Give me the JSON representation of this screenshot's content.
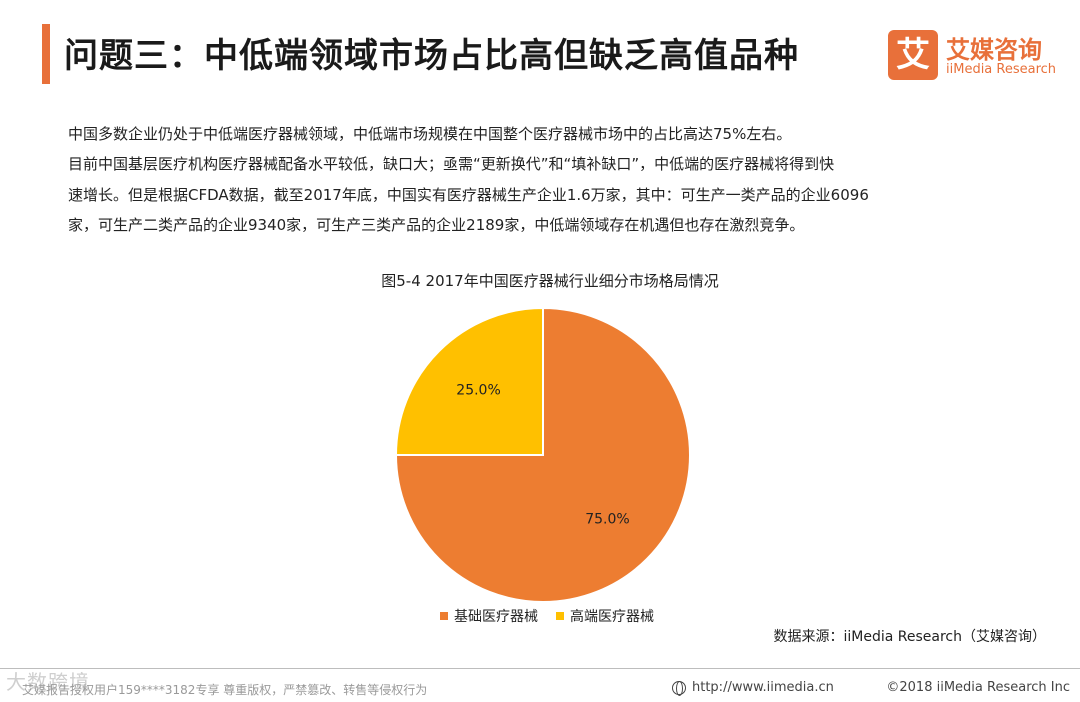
{
  "header": {
    "title": "问题三：中低端领域市场占比高但缺乏高值品种"
  },
  "logo": {
    "mark": "艾",
    "name_cn": "艾媒咨询",
    "name_en": "iiMedia Research"
  },
  "body": {
    "line1": "中国多数企业仍处于中低端医疗器械领域，中低端市场规模在中国整个医疗器械市场中的占比高达75%左右。",
    "line2": "目前中国基层医疗机构医疗器械配备水平较低，缺口大；亟需“更新换代”和“填补缺口”，中低端的医疗器械将得到快",
    "line3": "速增长。但是根据CFDA数据，截至2017年底，中国实有医疗器械生产企业1.6万家，其中：可生产一类产品的企业6096",
    "line4": "家，可生产二类产品的企业9340家，可生产三类产品的企业2189家，中低端领域存在机遇但也存在激烈竞争。"
  },
  "chart_data": {
    "type": "pie",
    "title": "图5-4 2017年中国医疗器械行业细分市场格局情况",
    "categories": [
      "基础医疗器械",
      "高端医疗器械"
    ],
    "values": [
      75.0,
      25.0
    ],
    "labels": [
      "75.0%",
      "25.0%"
    ],
    "colors": [
      "#ed7d31",
      "#ffc000"
    ],
    "legend_position": "bottom"
  },
  "source": "数据来源：iiMedia Research（艾媒咨询）",
  "footer": {
    "watermark": "大数跨境",
    "left_text": "艾媒报告授权用户159****3182专享 尊重版权，严禁篡改、转售等侵权行为",
    "url": "http://www.iimedia.cn",
    "copyright": "©2018  iiMedia Research  Inc"
  }
}
